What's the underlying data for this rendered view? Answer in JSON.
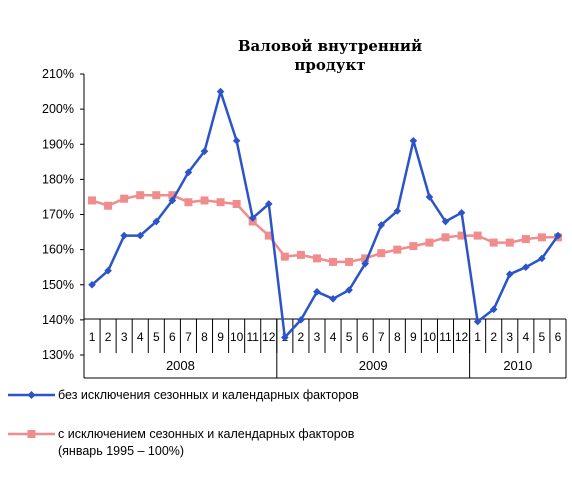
{
  "chart_data": {
    "type": "line",
    "title_lines": [
      "Валовой внутренний",
      "продукт"
    ],
    "yticks": [
      "130%",
      "140%",
      "150%",
      "160%",
      "170%",
      "180%",
      "190%",
      "200%",
      "210%"
    ],
    "ylim": [
      130,
      210
    ],
    "month_labels": [
      "1",
      "2",
      "3",
      "4",
      "5",
      "6",
      "7",
      "8",
      "9",
      "10",
      "11",
      "12",
      "1",
      "2",
      "3",
      "4",
      "5",
      "6",
      "7",
      "8",
      "9",
      "10",
      "11",
      "12",
      "1",
      "2",
      "3",
      "4",
      "5",
      "6"
    ],
    "years": [
      {
        "label": "2008",
        "start": 0,
        "end": 11
      },
      {
        "label": "2009",
        "start": 12,
        "end": 23
      },
      {
        "label": "2010",
        "start": 24,
        "end": 29
      }
    ],
    "series": [
      {
        "name": "без исключения сезонных и календарных факторов",
        "color": "#2b54c8",
        "marker": "diamond",
        "values": [
          150,
          154,
          164,
          164,
          168,
          174,
          182,
          188,
          205,
          191,
          169,
          173,
          135,
          140,
          148,
          146,
          148.5,
          156,
          167,
          171,
          191,
          175,
          168,
          170.5,
          139.5,
          143,
          153,
          155,
          157.5,
          164
        ]
      },
      {
        "name": "с исключением сезонных и календарных факторов",
        "name_line2": "(январь 1995 – 100%)",
        "color": "#f08c8c",
        "marker": "square",
        "values": [
          174,
          172.5,
          174.5,
          175.5,
          175.5,
          175.5,
          173.5,
          174,
          173.5,
          173,
          168,
          164,
          158,
          158.5,
          157.5,
          156.5,
          156.5,
          157.5,
          159,
          160,
          161,
          162,
          163.5,
          164,
          164,
          162,
          162,
          163,
          163.5,
          163.5
        ]
      }
    ]
  }
}
